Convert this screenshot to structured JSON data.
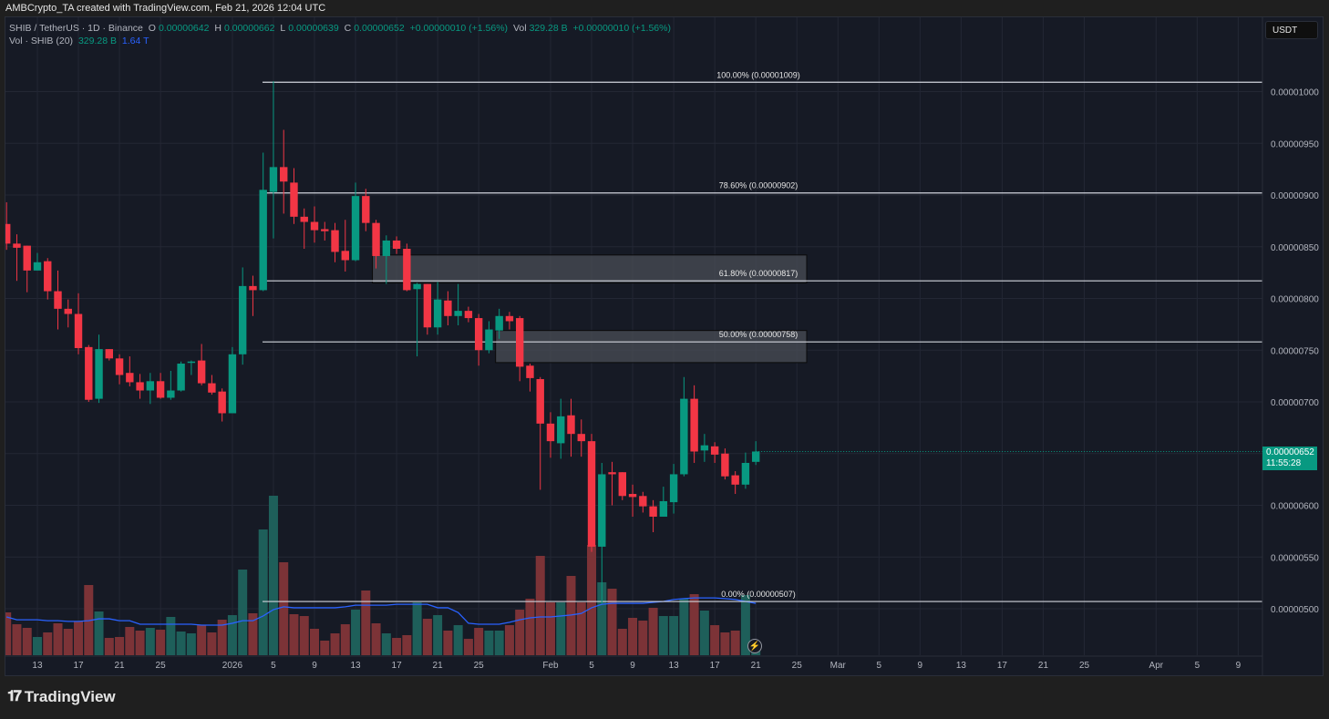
{
  "header": {
    "credit": "AMBCrypto_TA created with TradingView.com, Feb 21, 2026 12:04 UTC"
  },
  "legend": {
    "symbol": "SHIB / TetherUS · 1D · Binance",
    "o_label": "O",
    "o": "0.00000642",
    "h_label": "H",
    "h": "0.00000662",
    "l_label": "L",
    "l": "0.00000639",
    "c_label": "C",
    "c": "0.00000652",
    "change": "+0.00000010 (+1.56%)",
    "vol_label": "Vol",
    "vol": "329.28 B",
    "vol_change": "+0.00000010 (+1.56%)",
    "vol_indicator": "Vol · SHIB (20)",
    "vol_value": "329.28 B",
    "vol_ma": "1.64 T"
  },
  "currency_button": "USDT",
  "current_price": {
    "price": "0.00000652",
    "countdown": "11:55:28"
  },
  "footer": {
    "logo_text": "TradingView"
  },
  "colors": {
    "up": "#089981",
    "down": "#f23645",
    "vol_up": "#1e5f5a",
    "vol_down": "#7c3337",
    "ma": "#2962ff",
    "fib": "#d1d4dc",
    "box": "#4a4d55"
  },
  "chart_data": {
    "type": "candlestick",
    "title": "SHIB / TetherUS · 1D · Binance",
    "price_unit_multiplier": 1e-08,
    "first_date": "Dec 10",
    "last_date": "Feb 21",
    "ohlc": [
      [
        872,
        893,
        847,
        853
      ],
      [
        853,
        862,
        817,
        849
      ],
      [
        851,
        851,
        806,
        827
      ],
      [
        827,
        844,
        827,
        835
      ],
      [
        836,
        839,
        799,
        807
      ],
      [
        807,
        827,
        770,
        790
      ],
      [
        790,
        799,
        772,
        785
      ],
      [
        785,
        805,
        746,
        752
      ],
      [
        753,
        755,
        700,
        702
      ],
      [
        703,
        765,
        699,
        751
      ],
      [
        751,
        751,
        740,
        742
      ],
      [
        742,
        746,
        717,
        726
      ],
      [
        728,
        744,
        715,
        719
      ],
      [
        719,
        727,
        703,
        711
      ],
      [
        711,
        728,
        698,
        720
      ],
      [
        720,
        728,
        703,
        704
      ],
      [
        704,
        730,
        702,
        711
      ],
      [
        711,
        739,
        710,
        737
      ],
      [
        738,
        740,
        726,
        739
      ],
      [
        740,
        756,
        716,
        718
      ],
      [
        718,
        726,
        707,
        709
      ],
      [
        710,
        713,
        681,
        689
      ],
      [
        689,
        753,
        689,
        746
      ],
      [
        746,
        830,
        736,
        812
      ],
      [
        812,
        822,
        783,
        808
      ],
      [
        808,
        941,
        807,
        905
      ],
      [
        903,
        1010,
        858,
        927
      ],
      [
        927,
        963,
        882,
        913
      ],
      [
        912,
        926,
        872,
        879
      ],
      [
        879,
        887,
        848,
        874
      ],
      [
        874,
        889,
        854,
        866
      ],
      [
        867,
        874,
        856,
        865
      ],
      [
        866,
        873,
        835,
        845
      ],
      [
        846,
        876,
        826,
        837
      ],
      [
        837,
        912,
        836,
        899
      ],
      [
        899,
        906,
        865,
        873
      ],
      [
        873,
        876,
        829,
        841
      ],
      [
        841,
        861,
        814,
        856
      ],
      [
        856,
        860,
        843,
        848
      ],
      [
        848,
        853,
        807,
        808
      ],
      [
        809,
        815,
        744,
        814
      ],
      [
        814,
        814,
        765,
        772
      ],
      [
        772,
        816,
        765,
        799
      ],
      [
        798,
        807,
        774,
        783
      ],
      [
        783,
        814,
        774,
        788
      ],
      [
        788,
        792,
        777,
        781
      ],
      [
        781,
        785,
        735,
        750
      ],
      [
        750,
        778,
        747,
        770
      ],
      [
        769,
        790,
        761,
        783
      ],
      [
        783,
        787,
        770,
        778
      ],
      [
        781,
        783,
        720,
        734
      ],
      [
        735,
        737,
        710,
        723
      ],
      [
        722,
        724,
        615,
        679
      ],
      [
        679,
        690,
        646,
        662
      ],
      [
        660,
        703,
        645,
        686
      ],
      [
        687,
        703,
        647,
        669
      ],
      [
        669,
        683,
        647,
        662
      ],
      [
        662,
        669,
        555,
        560
      ],
      [
        560,
        641,
        505,
        630
      ],
      [
        632,
        642,
        600,
        630
      ],
      [
        632,
        632,
        605,
        609
      ],
      [
        611,
        620,
        589,
        608
      ],
      [
        609,
        613,
        593,
        599
      ],
      [
        599,
        605,
        574,
        589
      ],
      [
        589,
        618,
        589,
        604
      ],
      [
        603,
        640,
        592,
        630
      ],
      [
        630,
        724,
        628,
        703
      ],
      [
        703,
        716,
        641,
        652
      ],
      [
        653,
        669,
        642,
        658
      ],
      [
        657,
        661,
        641,
        649
      ],
      [
        650,
        655,
        625,
        628
      ],
      [
        629,
        633,
        611,
        620
      ],
      [
        620,
        651,
        616,
        641
      ],
      [
        642,
        662,
        639,
        652
      ]
    ],
    "volume_B": [
      1354,
      979,
      864,
      576,
      720,
      1008,
      835,
      1066,
      2218,
      1382,
      547,
      576,
      893,
      778,
      864,
      806,
      1210,
      749,
      691,
      950,
      720,
      1123,
      1267,
      2707,
      1325,
      3974,
      5040,
      2938,
      1296,
      1238,
      835,
      461,
      691,
      979,
      1440,
      2045,
      1008,
      691,
      547,
      634,
      1670,
      1152,
      1267,
      778,
      950,
      518,
      864,
      778,
      778,
      950,
      1440,
      1786,
      3139,
      1670,
      1670,
      2506,
      1670,
      3485,
      2304,
      2102,
      835,
      1181,
      1094,
      1498,
      1238,
      1238,
      1786,
      1930,
      1411,
      950,
      720,
      778,
      1901,
      329
    ],
    "volume_ma20_T": [
      1.21,
      1.12,
      1.12,
      1.12,
      1.09,
      1.09,
      1.07,
      1.07,
      1.09,
      1.15,
      1.15,
      1.09,
      1.09,
      0.98,
      0.98,
      0.98,
      0.98,
      0.98,
      0.98,
      0.95,
      0.95,
      0.95,
      1.01,
      1.09,
      1.09,
      1.24,
      1.44,
      1.53,
      1.5,
      1.5,
      1.5,
      1.5,
      1.5,
      1.53,
      1.58,
      1.58,
      1.58,
      1.58,
      1.61,
      1.61,
      1.61,
      1.61,
      1.5,
      1.5,
      1.35,
      1.01,
      0.98,
      0.98,
      0.98,
      1.04,
      1.12,
      1.18,
      1.21,
      1.21,
      1.24,
      1.27,
      1.32,
      1.5,
      1.61,
      1.64,
      1.64,
      1.64,
      1.64,
      1.67,
      1.7,
      1.76,
      1.79,
      1.81,
      1.81,
      1.81,
      1.79,
      1.76,
      1.7,
      1.64
    ],
    "fib_levels": [
      {
        "label": "100.00% (0.00001009)",
        "price": 1009
      },
      {
        "label": "78.60% (0.00000902)",
        "price": 902
      },
      {
        "label": "61.80% (0.00000817)",
        "price": 817
      },
      {
        "label": "50.00% (0.00000758)",
        "price": 758
      },
      {
        "label": "0.00% (0.00000507)",
        "price": 507
      }
    ],
    "zones": [
      {
        "start_index": 36,
        "top": 842,
        "bottom": 815
      },
      {
        "start_index": 48,
        "top": 769,
        "bottom": 738
      }
    ],
    "y_ticks": [
      {
        "value": 1000,
        "label": "0.00001000"
      },
      {
        "value": 950,
        "label": "0.00000950"
      },
      {
        "value": 900,
        "label": "0.00000900"
      },
      {
        "value": 850,
        "label": "0.00000850"
      },
      {
        "value": 800,
        "label": "0.00000800"
      },
      {
        "value": 750,
        "label": "0.00000750"
      },
      {
        "value": 700,
        "label": "0.00000700"
      },
      {
        "value": 600,
        "label": "0.00000600"
      },
      {
        "value": 550,
        "label": "0.00000550"
      },
      {
        "value": 500,
        "label": "0.00000500"
      }
    ],
    "x_ticks": [
      {
        "day": 3,
        "label": "13"
      },
      {
        "day": 7,
        "label": "17"
      },
      {
        "day": 11,
        "label": "21"
      },
      {
        "day": 15,
        "label": "25"
      },
      {
        "day": 22,
        "label": "2026"
      },
      {
        "day": 26,
        "label": "5"
      },
      {
        "day": 30,
        "label": "9"
      },
      {
        "day": 34,
        "label": "13"
      },
      {
        "day": 38,
        "label": "17"
      },
      {
        "day": 42,
        "label": "21"
      },
      {
        "day": 46,
        "label": "25"
      },
      {
        "day": 53,
        "label": "Feb"
      },
      {
        "day": 57,
        "label": "5"
      },
      {
        "day": 61,
        "label": "9"
      },
      {
        "day": 65,
        "label": "13"
      },
      {
        "day": 69,
        "label": "17"
      },
      {
        "day": 73,
        "label": "21"
      },
      {
        "day": 77,
        "label": "25"
      },
      {
        "day": 81,
        "label": "Mar"
      },
      {
        "day": 85,
        "label": "5"
      },
      {
        "day": 89,
        "label": "9"
      },
      {
        "day": 93,
        "label": "13"
      },
      {
        "day": 97,
        "label": "17"
      },
      {
        "day": 101,
        "label": "21"
      },
      {
        "day": 105,
        "label": "25"
      },
      {
        "day": 112,
        "label": "Apr"
      },
      {
        "day": 116,
        "label": "5"
      },
      {
        "day": 120,
        "label": "9"
      }
    ]
  }
}
